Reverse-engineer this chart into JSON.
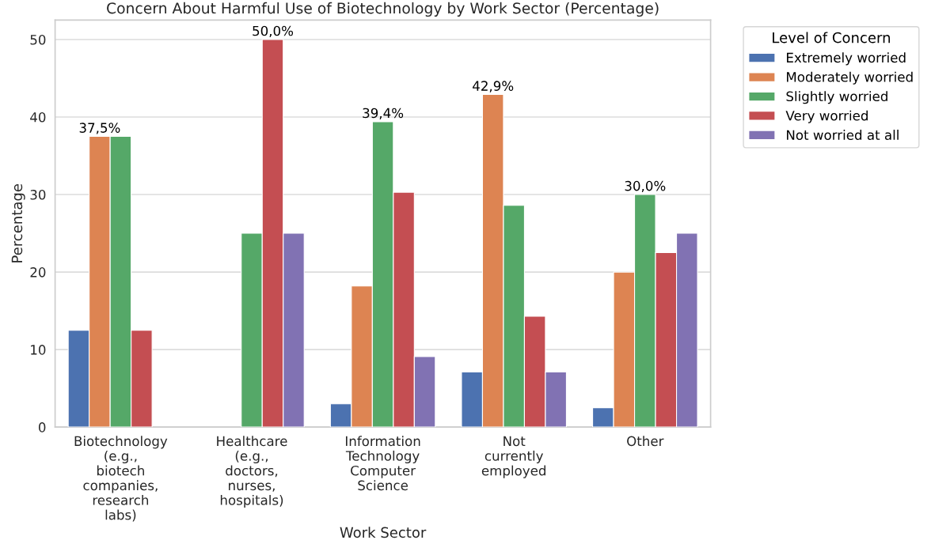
{
  "chart_data": {
    "type": "bar",
    "title": "Concern About Harmful Use of Biotechnology by Work Sector (Percentage)",
    "xlabel": "Work Sector",
    "ylabel": "Percentage",
    "legend_title": "Level of Concern",
    "categories": [
      "Biotechnology\n(e.g.,\nbiotech\ncompanies,\nresearch\nlabs)",
      "Healthcare\n(e.g.,\ndoctors,\nnurses,\nhospitals)",
      "Information\nTechnology\nComputer\nScience",
      "Not\ncurrently\nemployed",
      "Other"
    ],
    "series": [
      {
        "name": "Extremely worried",
        "color": "#4c72b0",
        "values": [
          12.5,
          null,
          3.0,
          7.1,
          2.5
        ],
        "value_labels": [
          null,
          null,
          null,
          null,
          null
        ]
      },
      {
        "name": "Moderately worried",
        "color": "#dd8452",
        "values": [
          37.5,
          null,
          18.2,
          42.9,
          20.0
        ],
        "value_labels": [
          "37,5%",
          null,
          null,
          "42,9%",
          null
        ]
      },
      {
        "name": "Slightly worried",
        "color": "#55a868",
        "values": [
          37.5,
          25.0,
          39.4,
          28.6,
          30.0
        ],
        "value_labels": [
          null,
          null,
          "39,4%",
          null,
          "30,0%"
        ]
      },
      {
        "name": "Very worried",
        "color": "#c44e52",
        "values": [
          12.5,
          50.0,
          30.3,
          14.3,
          22.5
        ],
        "value_labels": [
          null,
          "50,0%",
          null,
          null,
          null
        ]
      },
      {
        "name": "Not worried at all",
        "color": "#8172b3",
        "values": [
          null,
          25.0,
          9.1,
          7.1,
          25.0
        ],
        "value_labels": [
          null,
          null,
          null,
          null,
          null
        ]
      }
    ],
    "ylim": [
      0,
      52.5
    ],
    "yticks": [
      0,
      10,
      20,
      30,
      40,
      50
    ],
    "grid": "y",
    "legend": "top right"
  }
}
